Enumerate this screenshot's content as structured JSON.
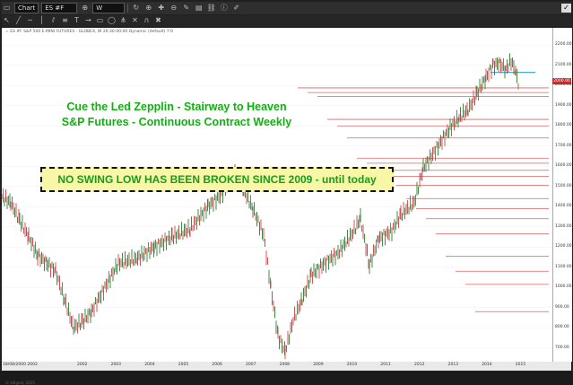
{
  "toolbar": {
    "chart_label": "Chart",
    "symbol": "ES #F",
    "interval": "W"
  },
  "chart": {
    "info_line": "= ES #F  S&P 500 E-MINI FUTURES - GLOBEX, W 20:30:40:00 Dynamic (default) 7:0",
    "headline_1": "Cue the Led Zepplin - Stairway to Heaven",
    "headline_2": "S&P Futures - Continuous Contract Weekly",
    "callout": "NO SWING LOW HAS BEEN BROKEN SINCE 2009 - until today",
    "current_price": "2000.00",
    "copyright": "© eSignal, 2015",
    "price_ticks": [
      "2200.00",
      "2100.00",
      "2000.00",
      "1900.00",
      "1800.00",
      "1700.00",
      "1600.00",
      "1500.00",
      "1400.00",
      "1300.00",
      "1200.00",
      "1100.00",
      "1000.00",
      "900.00",
      "800.00",
      "700.00"
    ],
    "year_ticks": [
      "2002",
      "2003",
      "2004",
      "2005",
      "2006",
      "2007",
      "2008",
      "2009",
      "2010",
      "2011",
      "2012",
      "2013",
      "2014",
      "2015"
    ],
    "date_label": "18/08/2000 2002",
    "colors": {
      "headline": "#0fb30f",
      "callout_bg": "#f8f7a8",
      "support_lines": "#e06060",
      "last_low_line": "#49a8e6",
      "bars": "#2e7d32"
    }
  },
  "support_levels": [
    1988,
    1965,
    1945,
    1832,
    1800,
    1740,
    1640,
    1615,
    1580,
    1550,
    1505,
    1440,
    1390,
    1340,
    1265,
    1155,
    1080,
    1015,
    880
  ]
}
